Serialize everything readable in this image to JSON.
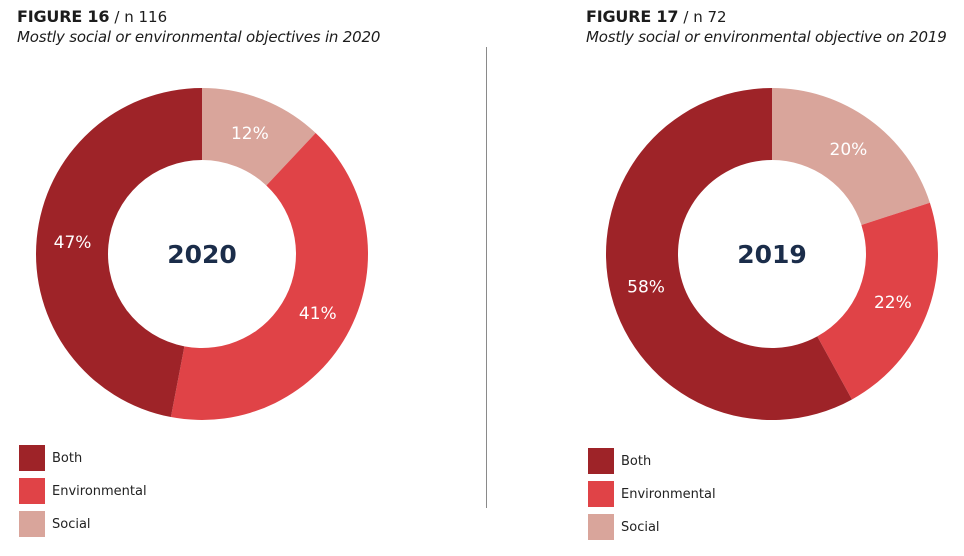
{
  "colors": {
    "Both": "#9e2328",
    "Environmental": "#e04347",
    "Social": "#d9a59b",
    "center_text": "#1b2d4a",
    "label_text": "#ffffff"
  },
  "legend": [
    "Both",
    "Environmental",
    "Social"
  ],
  "chart_data": [
    {
      "type": "pie",
      "donut": true,
      "figure": "FIGURE 16",
      "n_label": "/ n 116",
      "title": "Mostly social or environmental objectives in 2020",
      "center_label": "2020",
      "categories": [
        "Social",
        "Environmental",
        "Both"
      ],
      "values": [
        12,
        41,
        47
      ],
      "labels": [
        "12%",
        "41%",
        "47%"
      ],
      "start": "12 o'clock, clockwise",
      "legend": [
        "Both",
        "Environmental",
        "Social"
      ],
      "legend_position": "bottom-left"
    },
    {
      "type": "pie",
      "donut": true,
      "figure": "FIGURE 17",
      "n_label": "/ n 72",
      "title": "Mostly social or environmental objective on 2019",
      "center_label": "2019",
      "categories": [
        "Social",
        "Environmental",
        "Both"
      ],
      "values": [
        20,
        22,
        58
      ],
      "labels": [
        "20%",
        "22%",
        "58%"
      ],
      "start": "12 o'clock, clockwise",
      "legend": [
        "Both",
        "Environmental",
        "Social"
      ],
      "legend_position": "bottom-left"
    }
  ]
}
